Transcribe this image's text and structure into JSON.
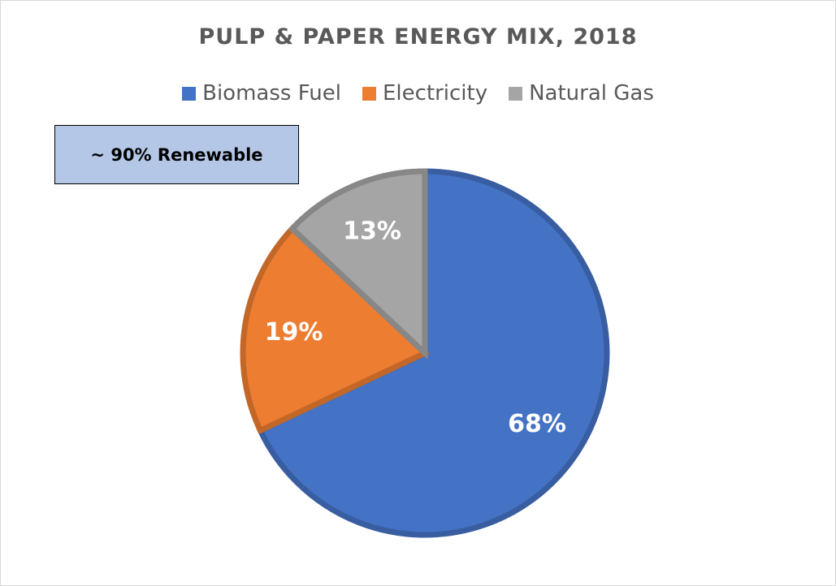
{
  "chart_data": {
    "type": "pie",
    "title": "PULP & PAPER ENERGY MIX, 2018",
    "categories": [
      "Biomass Fuel",
      "Electricity",
      "Natural Gas"
    ],
    "values": [
      68,
      19,
      13
    ],
    "data_labels": [
      "68%",
      "19%",
      "13%"
    ],
    "colors": [
      "#4472c4",
      "#ed7d31",
      "#a5a5a5"
    ],
    "legend_placement": "top",
    "annotation": "~ 90% Renewable"
  }
}
